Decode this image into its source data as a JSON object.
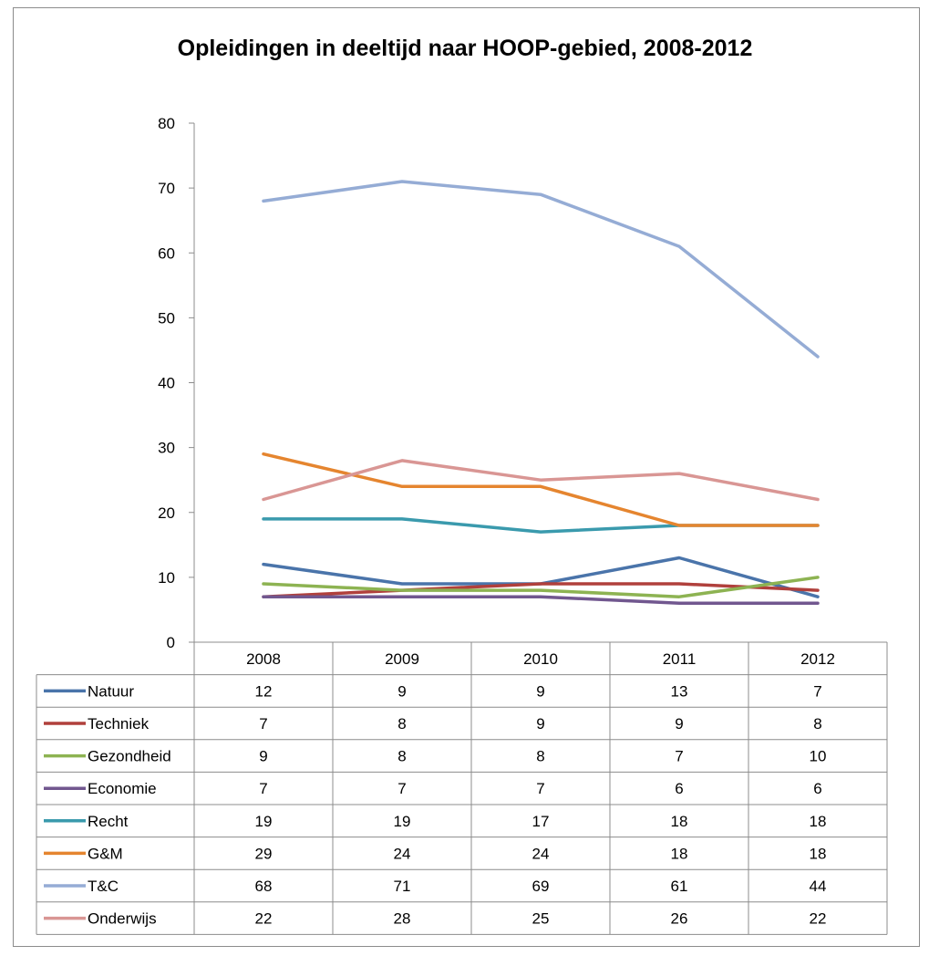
{
  "chart_data": {
    "type": "line",
    "title": "Opleidingen in deeltijd naar HOOP-gebied, 2008-2012",
    "xlabel": "",
    "ylabel": "",
    "ylim": [
      0,
      80
    ],
    "yticks": [
      0,
      10,
      20,
      30,
      40,
      50,
      60,
      70,
      80
    ],
    "grid": false,
    "legend": "data-table",
    "categories": [
      "2008",
      "2009",
      "2010",
      "2011",
      "2012"
    ],
    "series": [
      {
        "name": "Natuur",
        "color": "#4a74aa",
        "values": [
          12,
          9,
          9,
          13,
          7
        ]
      },
      {
        "name": "Techniek",
        "color": "#b0403c",
        "values": [
          7,
          8,
          9,
          9,
          8
        ]
      },
      {
        "name": "Gezondheid",
        "color": "#8db352",
        "values": [
          9,
          8,
          8,
          7,
          10
        ]
      },
      {
        "name": "Economie",
        "color": "#71578f",
        "values": [
          7,
          7,
          7,
          6,
          6
        ]
      },
      {
        "name": "Recht",
        "color": "#3a9aad",
        "values": [
          19,
          19,
          17,
          18,
          18
        ]
      },
      {
        "name": "G&M",
        "color": "#e5852f",
        "values": [
          29,
          24,
          24,
          18,
          18
        ]
      },
      {
        "name": "T&C",
        "color": "#95acd5",
        "values": [
          68,
          71,
          69,
          61,
          44
        ]
      },
      {
        "name": "Onderwijs",
        "color": "#d99694",
        "values": [
          22,
          28,
          25,
          26,
          22
        ]
      }
    ]
  }
}
